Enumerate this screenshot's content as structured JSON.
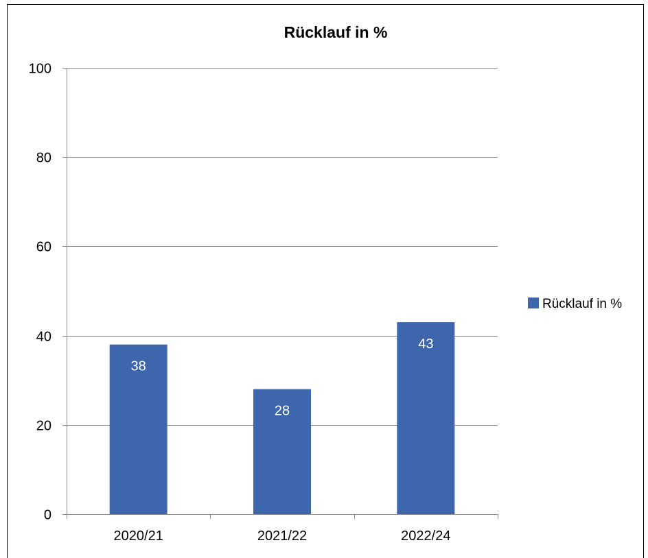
{
  "chart_data": {
    "type": "bar",
    "title": "Rücklauf in %",
    "xlabel": "",
    "ylabel": "",
    "categories": [
      "2020/21",
      "2021/22",
      "2022/24"
    ],
    "series": [
      {
        "name": "Rücklauf in %",
        "values": [
          38,
          28,
          43
        ],
        "data_labels": [
          "38",
          "28",
          "43"
        ]
      }
    ],
    "ylim": [
      0,
      100
    ],
    "yticks": [
      0,
      20,
      40,
      60,
      80,
      100
    ],
    "ytick_labels": [
      "0",
      "20",
      "40",
      "60",
      "80",
      "100"
    ],
    "grid": true,
    "legend_position": "right",
    "colors": {
      "bar": "#3e66ad",
      "grid": "#8c8c8c",
      "axis": "#8c8c8c",
      "text": "#000000",
      "data_label": "#ffffff"
    }
  }
}
